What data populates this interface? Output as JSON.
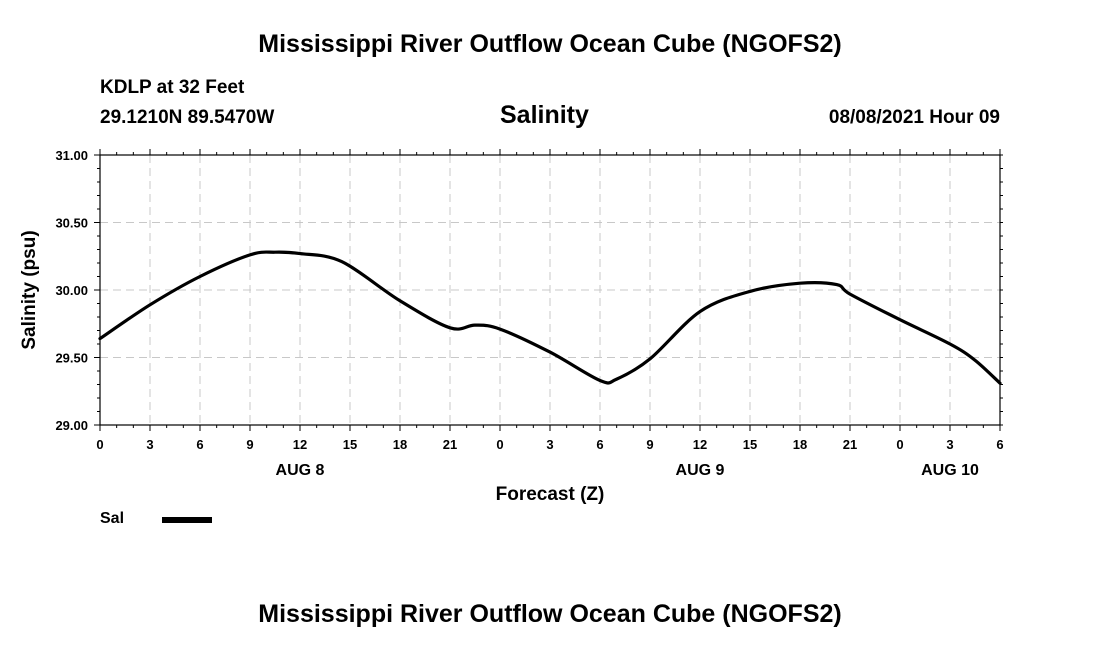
{
  "header": {
    "title_top": "Mississippi River Outflow Ocean Cube (NGOFS2)",
    "station": "KDLP at 32 Feet",
    "coords": "29.1210N  89.5470W",
    "variable": "Salinity",
    "datetime": "08/08/2021 Hour 09",
    "title_bottom": "Mississippi River Outflow Ocean Cube (NGOFS2)"
  },
  "legend": {
    "label": "Sal",
    "color": "#000000"
  },
  "chart_data": {
    "type": "line",
    "xlabel": "Forecast (Z)",
    "ylabel": "Salinity (psu)",
    "ylim": [
      29.0,
      31.0
    ],
    "xlim_hours": [
      0,
      54
    ],
    "y_ticks": [
      "29.00",
      "29.50",
      "30.00",
      "30.50",
      "31.00"
    ],
    "x_tick_labels": [
      "0",
      "3",
      "6",
      "9",
      "12",
      "15",
      "18",
      "21",
      "0",
      "3",
      "6",
      "9",
      "12",
      "15",
      "18",
      "21",
      "0",
      "3",
      "6"
    ],
    "day_labels": [
      {
        "label": "AUG 8",
        "hour": 12
      },
      {
        "label": "AUG 9",
        "hour": 36
      },
      {
        "label": "AUG 10",
        "hour": 51
      }
    ],
    "grid": true,
    "series": [
      {
        "name": "Sal",
        "x_hours": [
          0,
          3,
          6,
          9,
          10.5,
          12,
          14.5,
          18,
          21,
          22.5,
          24,
          27,
          30,
          31,
          33,
          36,
          39,
          42,
          44.2,
          45,
          48,
          51,
          52.5,
          54
        ],
        "values": [
          29.64,
          29.89,
          30.1,
          30.26,
          30.28,
          30.27,
          30.21,
          29.92,
          29.72,
          29.74,
          29.71,
          29.54,
          29.33,
          29.34,
          29.49,
          29.84,
          29.99,
          30.05,
          30.04,
          29.97,
          29.78,
          29.6,
          29.48,
          29.31
        ]
      }
    ]
  }
}
